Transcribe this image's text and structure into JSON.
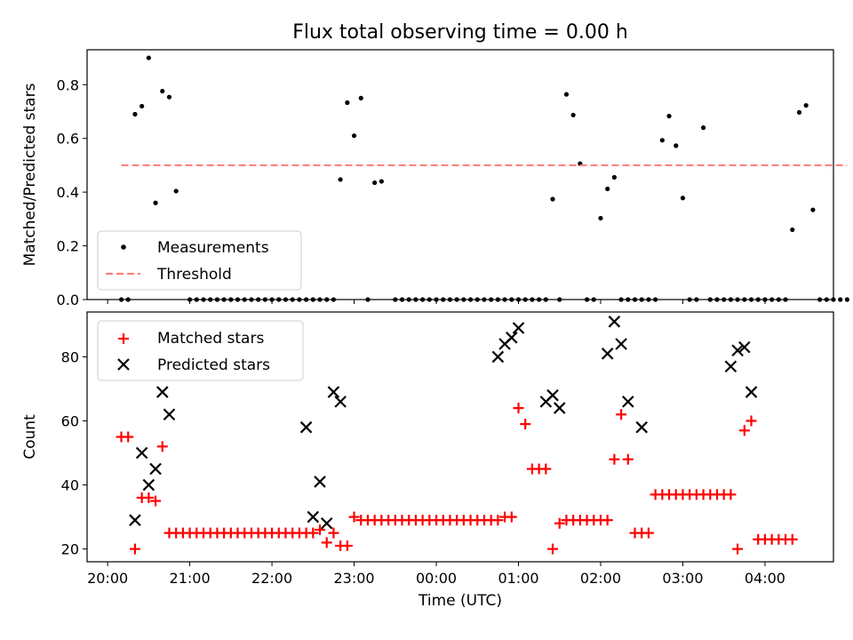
{
  "figure": {
    "title": "Flux total observing time = 0.00 h"
  },
  "colors": {
    "measurement": "#000000",
    "threshold": "#ff7f7f",
    "matched": "#ff0000",
    "predicted": "#000000"
  },
  "chart_data": [
    {
      "type": "scatter",
      "title": "Flux total observing time = 0.00 h",
      "xlabel": "",
      "ylabel": "Matched/Predicted stars",
      "xlim": [
        "19:45",
        "04:50"
      ],
      "ylim": [
        0,
        0.93
      ],
      "yticks": [
        0.0,
        0.2,
        0.4,
        0.6,
        0.8
      ],
      "ytick_labels": [
        "0.0",
        "0.2",
        "0.4",
        "0.6",
        "0.8"
      ],
      "legend_position": "lower-left",
      "series": [
        {
          "name": "Measurements",
          "marker": "dot",
          "points": [
            [
              "20:10",
              0
            ],
            [
              "20:15",
              0
            ],
            [
              "20:20",
              0.69
            ],
            [
              "20:25",
              0.72
            ],
            [
              "20:30",
              0.9
            ],
            [
              "20:35",
              0.36
            ],
            [
              "20:40",
              0.776
            ],
            [
              "20:45",
              0.754
            ],
            [
              "20:50",
              0.404
            ],
            [
              "21:00",
              0
            ],
            [
              "21:05",
              0
            ],
            [
              "21:10",
              0
            ],
            [
              "21:15",
              0
            ],
            [
              "21:20",
              0
            ],
            [
              "21:25",
              0
            ],
            [
              "21:30",
              0
            ],
            [
              "21:35",
              0
            ],
            [
              "21:40",
              0
            ],
            [
              "21:45",
              0
            ],
            [
              "21:50",
              0
            ],
            [
              "21:55",
              0
            ],
            [
              "22:00",
              0
            ],
            [
              "22:05",
              0
            ],
            [
              "22:10",
              0
            ],
            [
              "22:15",
              0
            ],
            [
              "22:20",
              0
            ],
            [
              "22:25",
              0
            ],
            [
              "22:30",
              0
            ],
            [
              "22:35",
              0
            ],
            [
              "22:40",
              0
            ],
            [
              "22:45",
              0
            ],
            [
              "22:50",
              0.447
            ],
            [
              "22:55",
              0.733
            ],
            [
              "23:00",
              0.61
            ],
            [
              "23:05",
              0.75
            ],
            [
              "23:10",
              0
            ],
            [
              "23:15",
              0.435
            ],
            [
              "23:20",
              0.44
            ],
            [
              "23:30",
              0
            ],
            [
              "23:35",
              0
            ],
            [
              "23:40",
              0
            ],
            [
              "23:45",
              0
            ],
            [
              "23:50",
              0
            ],
            [
              "23:55",
              0
            ],
            [
              "00:00",
              0
            ],
            [
              "00:05",
              0
            ],
            [
              "00:10",
              0
            ],
            [
              "00:15",
              0
            ],
            [
              "00:20",
              0
            ],
            [
              "00:25",
              0
            ],
            [
              "00:30",
              0
            ],
            [
              "00:35",
              0
            ],
            [
              "00:40",
              0
            ],
            [
              "00:45",
              0
            ],
            [
              "00:50",
              0
            ],
            [
              "00:55",
              0
            ],
            [
              "01:00",
              0
            ],
            [
              "01:05",
              0
            ],
            [
              "01:10",
              0
            ],
            [
              "01:15",
              0
            ],
            [
              "01:20",
              0
            ],
            [
              "01:25",
              0.374
            ],
            [
              "01:30",
              0
            ],
            [
              "01:35",
              0.764
            ],
            [
              "01:40",
              0.687
            ],
            [
              "01:45",
              0.506
            ],
            [
              "01:50",
              0
            ],
            [
              "01:55",
              0
            ],
            [
              "02:00",
              0.303
            ],
            [
              "02:05",
              0.412
            ],
            [
              "02:10",
              0.455
            ],
            [
              "02:15",
              0
            ],
            [
              "02:20",
              0
            ],
            [
              "02:25",
              0
            ],
            [
              "02:30",
              0
            ],
            [
              "02:35",
              0
            ],
            [
              "02:40",
              0
            ],
            [
              "02:45",
              0.593
            ],
            [
              "02:50",
              0.683
            ],
            [
              "02:55",
              0.573
            ],
            [
              "03:00",
              0.378
            ],
            [
              "03:05",
              0
            ],
            [
              "03:10",
              0
            ],
            [
              "03:15",
              0.64
            ],
            [
              "03:20",
              0
            ],
            [
              "03:25",
              0
            ],
            [
              "03:30",
              0
            ],
            [
              "03:35",
              0
            ],
            [
              "03:40",
              0
            ],
            [
              "03:45",
              0
            ],
            [
              "03:50",
              0
            ],
            [
              "03:55",
              0
            ],
            [
              "04:00",
              0
            ],
            [
              "04:05",
              0
            ],
            [
              "04:10",
              0
            ],
            [
              "04:15",
              0
            ],
            [
              "04:20",
              0.26
            ],
            [
              "04:25",
              0.697
            ],
            [
              "04:30",
              0.723
            ],
            [
              "04:35",
              0.334
            ],
            [
              "04:40",
              0
            ],
            [
              "04:45",
              0
            ],
            [
              "04:50",
              0
            ],
            [
              "04:55",
              0
            ],
            [
              "05:00",
              0
            ]
          ]
        },
        {
          "name": "Threshold",
          "style": "dashed",
          "points": [
            [
              "20:10",
              0.5
            ],
            [
              "05:00",
              0.5
            ]
          ]
        }
      ]
    },
    {
      "type": "scatter",
      "xlabel": "Time (UTC)",
      "ylabel": "Count",
      "xlim": [
        "19:45",
        "04:50"
      ],
      "ylim": [
        16,
        94
      ],
      "yticks": [
        20,
        40,
        60,
        80
      ],
      "xticks": [
        "20:00",
        "21:00",
        "22:00",
        "23:00",
        "00:00",
        "01:00",
        "02:00",
        "03:00",
        "04:00"
      ],
      "legend_position": "upper-left",
      "series": [
        {
          "name": "Matched stars",
          "marker": "plus",
          "points": [
            [
              "20:10",
              55
            ],
            [
              "20:15",
              55
            ],
            [
              "20:20",
              20
            ],
            [
              "20:25",
              36
            ],
            [
              "20:30",
              36
            ],
            [
              "20:35",
              35
            ],
            [
              "20:40",
              52
            ],
            [
              "20:45",
              25
            ],
            [
              "20:50",
              25
            ],
            [
              "20:55",
              25
            ],
            [
              "21:00",
              25
            ],
            [
              "21:05",
              25
            ],
            [
              "21:10",
              25
            ],
            [
              "21:15",
              25
            ],
            [
              "21:20",
              25
            ],
            [
              "21:25",
              25
            ],
            [
              "21:30",
              25
            ],
            [
              "21:35",
              25
            ],
            [
              "21:40",
              25
            ],
            [
              "21:45",
              25
            ],
            [
              "21:50",
              25
            ],
            [
              "21:55",
              25
            ],
            [
              "22:00",
              25
            ],
            [
              "22:05",
              25
            ],
            [
              "22:10",
              25
            ],
            [
              "22:15",
              25
            ],
            [
              "22:20",
              25
            ],
            [
              "22:25",
              25
            ],
            [
              "22:30",
              25
            ],
            [
              "22:35",
              26
            ],
            [
              "22:40",
              22
            ],
            [
              "22:45",
              25
            ],
            [
              "22:50",
              21
            ],
            [
              "22:55",
              21
            ],
            [
              "23:00",
              30
            ],
            [
              "23:05",
              29
            ],
            [
              "23:10",
              29
            ],
            [
              "23:15",
              29
            ],
            [
              "23:20",
              29
            ],
            [
              "23:25",
              29
            ],
            [
              "23:30",
              29
            ],
            [
              "23:35",
              29
            ],
            [
              "23:40",
              29
            ],
            [
              "23:45",
              29
            ],
            [
              "23:50",
              29
            ],
            [
              "23:55",
              29
            ],
            [
              "00:00",
              29
            ],
            [
              "00:05",
              29
            ],
            [
              "00:10",
              29
            ],
            [
              "00:15",
              29
            ],
            [
              "00:20",
              29
            ],
            [
              "00:25",
              29
            ],
            [
              "00:30",
              29
            ],
            [
              "00:35",
              29
            ],
            [
              "00:40",
              29
            ],
            [
              "00:45",
              29
            ],
            [
              "00:50",
              30
            ],
            [
              "00:55",
              30
            ],
            [
              "01:00",
              64
            ],
            [
              "01:05",
              59
            ],
            [
              "01:10",
              45
            ],
            [
              "01:15",
              45
            ],
            [
              "01:20",
              45
            ],
            [
              "01:25",
              20
            ],
            [
              "01:30",
              28
            ],
            [
              "01:35",
              29
            ],
            [
              "01:40",
              29
            ],
            [
              "01:45",
              29
            ],
            [
              "01:50",
              29
            ],
            [
              "01:55",
              29
            ],
            [
              "02:00",
              29
            ],
            [
              "02:05",
              29
            ],
            [
              "02:10",
              48
            ],
            [
              "02:15",
              62
            ],
            [
              "02:20",
              48
            ],
            [
              "02:25",
              25
            ],
            [
              "02:30",
              25
            ],
            [
              "02:35",
              25
            ],
            [
              "02:40",
              37
            ],
            [
              "02:45",
              37
            ],
            [
              "02:50",
              37
            ],
            [
              "02:55",
              37
            ],
            [
              "03:00",
              37
            ],
            [
              "03:05",
              37
            ],
            [
              "03:10",
              37
            ],
            [
              "03:15",
              37
            ],
            [
              "03:20",
              37
            ],
            [
              "03:25",
              37
            ],
            [
              "03:30",
              37
            ],
            [
              "03:35",
              37
            ],
            [
              "03:40",
              20
            ],
            [
              "03:45",
              57
            ],
            [
              "03:50",
              60
            ],
            [
              "03:55",
              23
            ],
            [
              "04:00",
              23
            ],
            [
              "04:05",
              23
            ],
            [
              "04:10",
              23
            ],
            [
              "04:15",
              23
            ],
            [
              "04:20",
              23
            ]
          ]
        },
        {
          "name": "Predicted stars",
          "marker": "x",
          "points": [
            [
              "20:20",
              29
            ],
            [
              "20:25",
              50
            ],
            [
              "20:30",
              40
            ],
            [
              "20:35",
              45
            ],
            [
              "20:40",
              69
            ],
            [
              "20:45",
              62
            ],
            [
              "22:25",
              58
            ],
            [
              "22:30",
              30
            ],
            [
              "22:35",
              41
            ],
            [
              "22:40",
              28
            ],
            [
              "22:45",
              69
            ],
            [
              "22:50",
              66
            ],
            [
              "00:45",
              80
            ],
            [
              "00:50",
              84
            ],
            [
              "00:55",
              86
            ],
            [
              "01:00",
              89
            ],
            [
              "01:20",
              66
            ],
            [
              "01:25",
              68
            ],
            [
              "01:30",
              64
            ],
            [
              "02:05",
              81
            ],
            [
              "02:10",
              91
            ],
            [
              "02:15",
              84
            ],
            [
              "02:20",
              66
            ],
            [
              "02:30",
              58
            ],
            [
              "03:35",
              77
            ],
            [
              "03:40",
              82
            ],
            [
              "03:45",
              83
            ],
            [
              "03:50",
              69
            ]
          ]
        }
      ]
    }
  ]
}
